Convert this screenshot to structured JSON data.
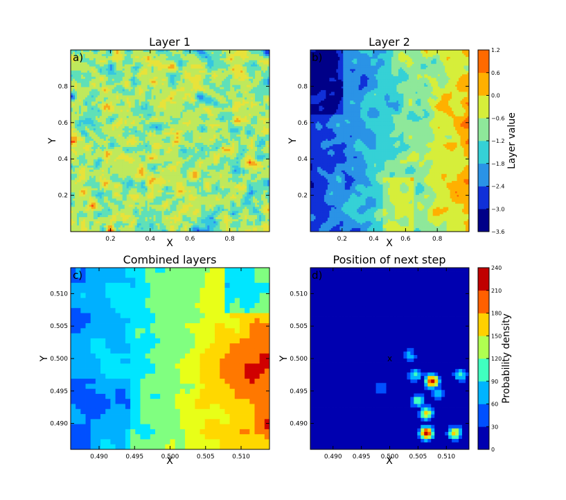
{
  "figure": {
    "colors": {
      "jet": [
        "#00007f",
        "#0000ff",
        "#007fff",
        "#00ffff",
        "#7fff7f",
        "#ffff00",
        "#ff7f00",
        "#ff0000",
        "#7f0000"
      ],
      "layer_colors": [
        "#000088",
        "#1030d8",
        "#2a93e6",
        "#35d1d6",
        "#8ee89a",
        "#d6ee3a",
        "#ffb000",
        "#ff6a00",
        "#b00000"
      ],
      "combined_colors": [
        "#0000ff",
        "#0050ff",
        "#00b0ff",
        "#00e6ff",
        "#80ff80",
        "#e8ff18",
        "#ffd800",
        "#ff7800",
        "#d00000"
      ],
      "prob_colors": [
        "#0000b0",
        "#0050ff",
        "#00b4ff",
        "#40ffc0",
        "#b0ff50",
        "#ffd000",
        "#ff6000",
        "#c00000"
      ]
    }
  },
  "chart_data": [
    {
      "panel": "a",
      "type": "heatmap",
      "panel_label": "a)",
      "title": "Layer 1",
      "xlabel": "X",
      "ylabel": "Y",
      "xlim": [
        0,
        1
      ],
      "ylim": [
        0,
        1
      ],
      "x_ticks": [
        0.2,
        0.4,
        0.6,
        0.8
      ],
      "x_tick_labels": [
        "0.2",
        "0.4",
        "0.6",
        "0.8"
      ],
      "y_ticks": [
        0.2,
        0.4,
        0.6,
        0.8
      ],
      "y_tick_labels": [
        "0.2",
        "0.4",
        "0.6",
        "0.8"
      ],
      "description_values": "fine-grained random field, values mostly between -1.8 and 0.6"
    },
    {
      "panel": "b",
      "type": "heatmap",
      "panel_label": "b)",
      "title": "Layer 2",
      "xlabel": "X",
      "ylabel": "Y",
      "xlim": [
        0,
        1
      ],
      "ylim": [
        0,
        1
      ],
      "x_ticks": [
        0.2,
        0.4,
        0.6,
        0.8
      ],
      "x_tick_labels": [
        "0.2",
        "0.4",
        "0.6",
        "0.8"
      ],
      "y_ticks": [
        0.2,
        0.4,
        0.6,
        0.8
      ],
      "y_tick_labels": [
        "0.2",
        "0.4",
        "0.6",
        "0.8"
      ],
      "colorbar": {
        "label": "Layer value",
        "levels": [
          -3.6,
          -3.0,
          -2.4,
          -1.8,
          -1.2,
          -0.6,
          0.0,
          0.6,
          1.2
        ],
        "tick_labels": [
          "−3.6",
          "−3.0",
          "−2.4",
          "−1.8",
          "−1.2",
          "−0.6",
          "0.0",
          "0.6",
          "1.2"
        ]
      }
    },
    {
      "panel": "c",
      "type": "heatmap",
      "panel_label": "c)",
      "title": "Combined layers",
      "xlabel": "X",
      "ylabel": "Y",
      "xlim": [
        0.486,
        0.514
      ],
      "ylim": [
        0.486,
        0.514
      ],
      "x_ticks": [
        0.49,
        0.495,
        0.5,
        0.505,
        0.51
      ],
      "x_tick_labels": [
        "0.490",
        "0.495",
        "0.500",
        "0.505",
        "0.510"
      ],
      "y_ticks": [
        0.49,
        0.495,
        0.5,
        0.505,
        0.51
      ],
      "y_tick_labels": [
        "0.490",
        "0.495",
        "0.500",
        "0.505",
        "0.510"
      ]
    },
    {
      "panel": "d",
      "type": "heatmap",
      "panel_label": "d)",
      "title": "Position of next step",
      "xlabel": "X",
      "ylabel": "Y",
      "xlim": [
        0.486,
        0.514
      ],
      "ylim": [
        0.486,
        0.514
      ],
      "x_ticks": [
        0.49,
        0.495,
        0.5,
        0.505,
        0.51
      ],
      "x_tick_labels": [
        "0.490",
        "0.495",
        "0.500",
        "0.505",
        "0.510"
      ],
      "y_ticks": [
        0.49,
        0.495,
        0.5,
        0.505,
        0.51
      ],
      "y_tick_labels": [
        "0.490",
        "0.495",
        "0.500",
        "0.505",
        "0.510"
      ],
      "marker": {
        "label": "x",
        "x": 0.5,
        "y": 0.5
      },
      "peaks": [
        {
          "x": 0.5075,
          "y": 0.4965,
          "value": 240
        },
        {
          "x": 0.5065,
          "y": 0.4885,
          "value": 240
        },
        {
          "x": 0.5065,
          "y": 0.4915,
          "value": 165
        },
        {
          "x": 0.5115,
          "y": 0.4885,
          "value": 165
        },
        {
          "x": 0.505,
          "y": 0.4935,
          "value": 120
        },
        {
          "x": 0.5045,
          "y": 0.4975,
          "value": 105
        },
        {
          "x": 0.5125,
          "y": 0.4975,
          "value": 105
        },
        {
          "x": 0.5035,
          "y": 0.5005,
          "value": 75
        },
        {
          "x": 0.4985,
          "y": 0.4955,
          "value": 60
        },
        {
          "x": 0.5085,
          "y": 0.4945,
          "value": 75
        }
      ],
      "colorbar": {
        "label": "Probability density",
        "levels": [
          0,
          30,
          60,
          90,
          120,
          150,
          180,
          210,
          240
        ],
        "tick_labels": [
          "0",
          "30",
          "60",
          "90",
          "120",
          "150",
          "180",
          "210",
          "240"
        ]
      }
    }
  ]
}
